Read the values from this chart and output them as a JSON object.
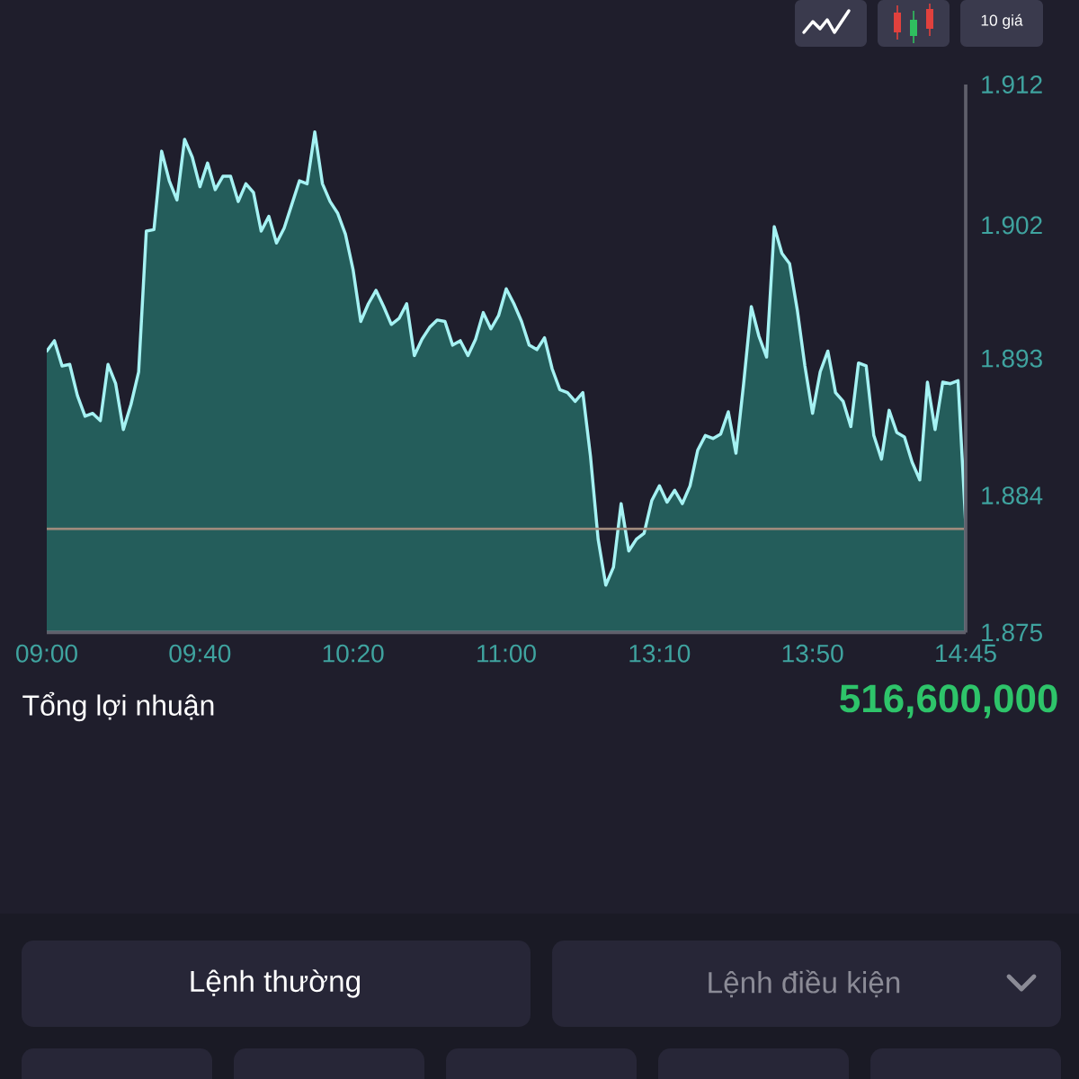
{
  "chart_data": {
    "type": "area",
    "color": "#a5f2f3",
    "categories": [
      "09:00",
      null,
      null,
      null,
      null,
      null,
      null,
      null,
      null,
      null,
      null,
      null,
      null,
      null,
      null,
      null,
      null,
      null,
      null,
      null,
      "09:40",
      null,
      null,
      null,
      null,
      null,
      null,
      null,
      null,
      null,
      null,
      null,
      null,
      null,
      null,
      null,
      null,
      null,
      null,
      null,
      "10:20",
      null,
      null,
      null,
      null,
      null,
      null,
      null,
      null,
      null,
      null,
      null,
      null,
      null,
      null,
      null,
      null,
      null,
      null,
      null,
      "11:00",
      null,
      null,
      null,
      null,
      null,
      null,
      null,
      null,
      null,
      null,
      null,
      null,
      null,
      null,
      null,
      null,
      null,
      null,
      null,
      "13:10",
      null,
      null,
      null,
      null,
      null,
      null,
      null,
      null,
      null,
      null,
      null,
      null,
      null,
      null,
      null,
      null,
      null,
      null,
      null,
      "13:50",
      null,
      null,
      null,
      null,
      null,
      null,
      null,
      null,
      null,
      null,
      null,
      null,
      null,
      null,
      null,
      null,
      null,
      null,
      null,
      "14:45"
    ],
    "values": [
      1.894,
      1.8947,
      1.893,
      1.8931,
      1.891,
      1.8896,
      1.8898,
      1.8893,
      1.8931,
      1.8918,
      1.8887,
      1.8904,
      1.8926,
      1.9021,
      1.9022,
      1.9075,
      1.9055,
      1.9042,
      1.9083,
      1.9071,
      1.9051,
      1.9067,
      1.9049,
      1.9058,
      1.9058,
      1.9041,
      1.9053,
      1.9047,
      1.9021,
      1.9031,
      1.9013,
      1.9023,
      1.9039,
      1.9055,
      1.9053,
      1.9088,
      1.9053,
      1.9041,
      1.9033,
      1.9019,
      1.8995,
      1.896,
      1.8972,
      1.8981,
      1.897,
      1.8958,
      1.8962,
      1.8972,
      1.8937,
      1.8948,
      1.8956,
      1.8961,
      1.896,
      1.8944,
      1.8947,
      1.8937,
      1.8948,
      1.8966,
      1.8955,
      1.8964,
      1.8982,
      1.8972,
      1.896,
      1.8944,
      1.8941,
      1.8949,
      1.8928,
      1.8914,
      1.8912,
      1.8906,
      1.8912,
      1.8869,
      1.8813,
      1.8782,
      1.8794,
      1.8837,
      1.8805,
      1.8813,
      1.8817,
      1.8839,
      1.8849,
      1.8838,
      1.8846,
      1.8837,
      1.8849,
      1.8873,
      1.8883,
      1.8881,
      1.8884,
      1.8899,
      1.8871,
      1.8918,
      1.897,
      1.895,
      1.8936,
      1.9024,
      1.9006,
      1.8999,
      1.8968,
      1.893,
      1.8898,
      1.8926,
      1.894,
      1.8912,
      1.8906,
      1.8889,
      1.8932,
      1.893,
      1.8883,
      1.8867,
      1.89,
      1.8885,
      1.8882,
      1.8865,
      1.8853,
      1.8919,
      1.8887,
      1.8919,
      1.8918,
      1.892,
      1.8823
    ],
    "ylim": [
      1.875,
      1.912
    ],
    "yticks": [
      1.875,
      {
        "value": 1.88425,
        "label": "1.884"
      },
      {
        "value": 1.8935,
        "label": "1.893"
      },
      {
        "value": 1.9025,
        "label": "1.902"
      },
      1.912
    ],
    "ref_lines": [
      {
        "axis": "y",
        "value": 1.882,
        "color": "#a08b7d"
      }
    ],
    "annotations": [
      "Tổng lợi nhuận",
      "516,600,000",
      "Lệnh thường",
      "Lệnh điều kiện",
      "10 giá"
    ]
  }
}
